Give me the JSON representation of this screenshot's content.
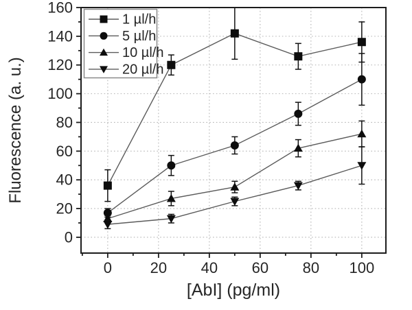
{
  "chart_data": {
    "type": "line",
    "title": "",
    "xlabel": "[AbI] (pg/ml)",
    "ylabel": "Fluorescence (a. u.)",
    "x": [
      0,
      25,
      50,
      75,
      100
    ],
    "series": [
      {
        "name": "1 µl/h",
        "marker": "square",
        "values": [
          36,
          120,
          142,
          126,
          136
        ],
        "errors": [
          11,
          7,
          18,
          9,
          14
        ]
      },
      {
        "name": "5 µl/h",
        "marker": "circle",
        "values": [
          17,
          50,
          64,
          86,
          110
        ],
        "errors": [
          3,
          7,
          6,
          8,
          18
        ]
      },
      {
        "name": "10 µl/h",
        "marker": "triangle-up",
        "values": [
          13,
          27,
          35,
          62,
          72
        ],
        "errors": [
          2,
          5,
          4,
          6,
          9
        ]
      },
      {
        "name": "20 µl/h",
        "marker": "triangle-down",
        "values": [
          9,
          13,
          25,
          36,
          50
        ],
        "errors": [
          3,
          3,
          3,
          3,
          13
        ]
      }
    ],
    "xlim": [
      -10.5,
      109.5
    ],
    "ylim": [
      -11,
      160
    ],
    "x_major_ticks": [
      0,
      20,
      40,
      60,
      80,
      100
    ],
    "x_minor_ticks": [
      -10,
      10,
      30,
      50,
      70,
      90
    ],
    "y_major_ticks": [
      0,
      20,
      40,
      60,
      80,
      100,
      120,
      140,
      160
    ],
    "y_minor_ticks": [
      10,
      30,
      50,
      70,
      90,
      110,
      130,
      150
    ],
    "grid": "dotted-major-both-axes",
    "legend_position": "top-left",
    "colors": {
      "background": "#ffffff",
      "line": "#5b5b5b",
      "marker": "#0d0d0d",
      "error_bar": "#111111",
      "grid": "#b4b4b4",
      "axis": "#1c1c1c",
      "text": "#262626",
      "legend_border": "#8a8a8a",
      "legend_fill": "#ffffff"
    }
  }
}
